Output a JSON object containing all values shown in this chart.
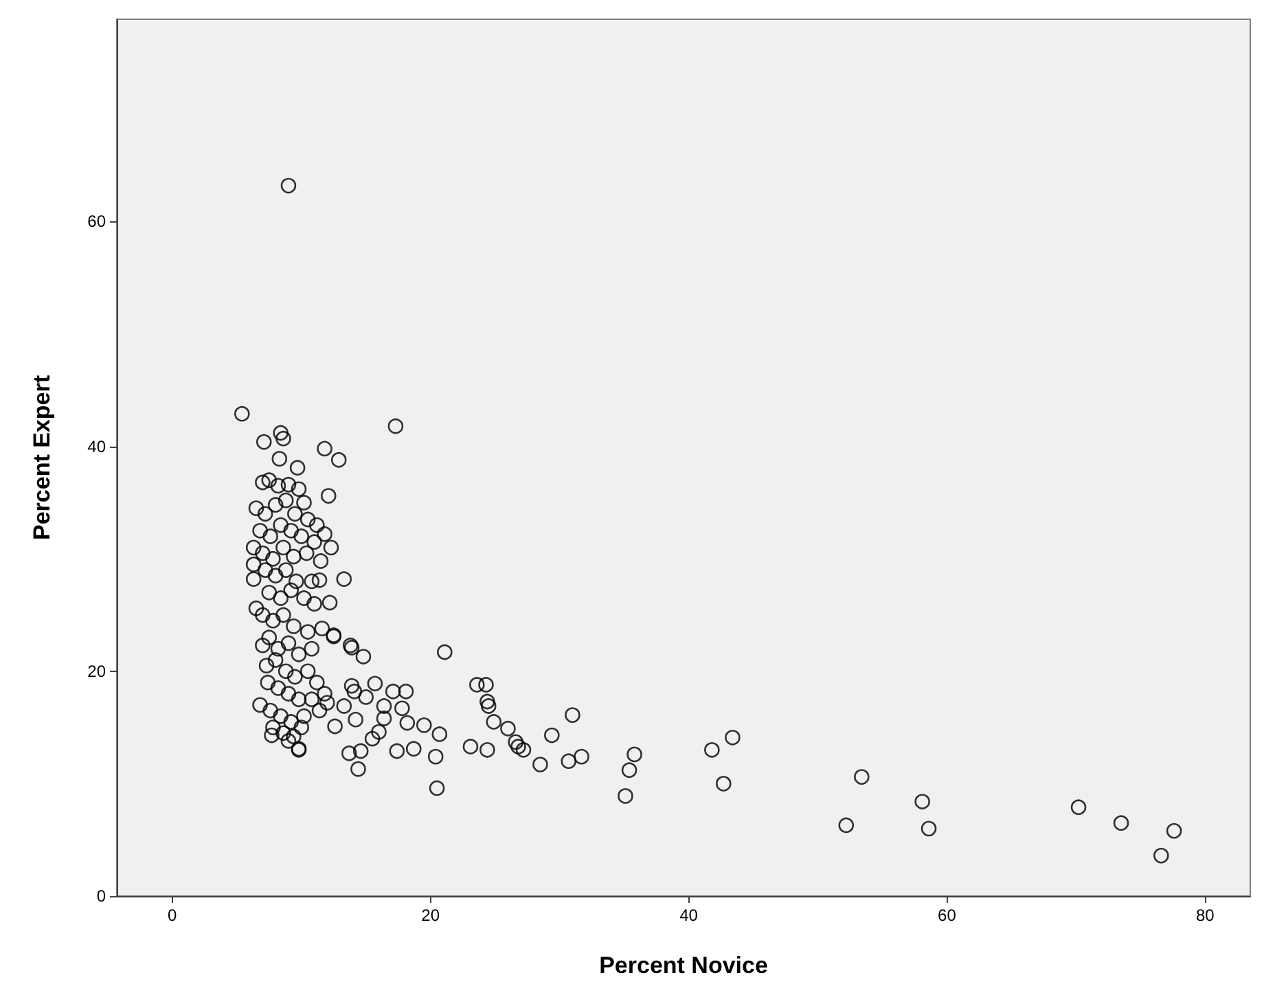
{
  "chart_data": {
    "type": "scatter",
    "xlabel": "Percent Novice",
    "ylabel": "Percent Expert",
    "xlim": [
      -4.3,
      83.5
    ],
    "ylim": [
      0,
      78
    ],
    "xticks": [
      0,
      20,
      40,
      60,
      80
    ],
    "yticks": [
      0,
      20,
      40,
      60
    ],
    "grid": false,
    "marker": "circle",
    "series": [
      {
        "color": "#000000",
        "x": [
          9.0,
          5.4,
          17.3,
          7.1,
          8.4,
          8.6,
          11.8,
          12.9,
          12.3,
          13.3,
          21.1,
          23.6,
          24.3,
          24.4,
          24.5,
          24.9,
          26.0,
          26.6,
          26.8,
          27.2,
          23.1,
          24.4,
          28.5,
          29.4,
          31.0,
          30.7,
          31.7,
          35.8,
          35.4,
          35.1,
          20.4,
          20.5,
          20.7,
          19.5,
          18.1,
          17.1,
          17.8,
          18.2,
          18.7,
          17.4,
          15.7,
          15.0,
          13.9,
          14.1,
          13.3,
          14.4,
          13.7,
          14.6,
          14.2,
          15.5,
          16.0,
          16.4,
          16.4,
          12.6,
          9.8,
          13.9,
          14.8,
          12.5,
          41.8,
          43.4,
          42.7,
          52.2,
          53.4,
          58.1,
          58.6,
          70.2,
          73.5,
          77.6,
          76.6,
          8.3,
          9.7,
          12.1,
          11.4,
          12.2,
          6.3,
          6.3,
          6.5,
          7.0,
          6.8,
          9.8,
          12.5,
          13.8,
          7.0,
          7.5,
          8.2,
          9.0,
          9.8,
          10.2,
          6.5,
          7.2,
          8.0,
          8.8,
          9.5,
          10.5,
          11.2,
          6.8,
          7.6,
          8.4,
          9.2,
          10.0,
          11.0,
          11.8,
          6.3,
          7.0,
          7.8,
          8.6,
          9.4,
          10.4,
          11.5,
          7.2,
          8.0,
          8.8,
          9.6,
          10.8,
          7.5,
          8.4,
          9.2,
          10.2,
          11.0,
          7.0,
          7.8,
          8.6,
          9.4,
          10.5,
          11.6,
          7.5,
          8.2,
          9.0,
          9.8,
          10.8,
          7.3,
          8.0,
          8.8,
          9.5,
          10.5,
          11.2,
          7.4,
          8.2,
          9.0,
          9.8,
          10.8,
          11.8,
          7.6,
          8.4,
          9.2,
          10.2,
          11.4,
          7.8,
          8.6,
          9.4,
          10.0,
          12.0,
          7.7,
          9.0
        ],
        "values": [
          63.2,
          42.9,
          41.8,
          40.4,
          41.2,
          40.7,
          39.8,
          38.8,
          31.0,
          28.2,
          21.7,
          18.8,
          18.8,
          17.3,
          16.9,
          15.5,
          14.9,
          13.7,
          13.3,
          13.0,
          13.3,
          13.0,
          11.7,
          14.3,
          16.1,
          12.0,
          12.4,
          12.6,
          11.2,
          8.9,
          12.4,
          9.6,
          14.4,
          15.2,
          18.2,
          18.2,
          16.7,
          15.4,
          13.1,
          12.9,
          18.9,
          17.7,
          18.7,
          18.2,
          16.9,
          11.3,
          12.7,
          12.9,
          15.7,
          14.0,
          14.6,
          16.9,
          15.8,
          15.1,
          13.0,
          22.1,
          21.3,
          23.1,
          13.0,
          14.1,
          10.0,
          6.3,
          10.6,
          8.4,
          6.0,
          7.9,
          6.5,
          5.8,
          3.6,
          38.9,
          38.1,
          35.6,
          28.1,
          26.1,
          29.5,
          28.2,
          25.6,
          22.3,
          17.0,
          13.1,
          23.2,
          22.3,
          36.8,
          37.0,
          36.5,
          36.6,
          36.2,
          35.0,
          34.5,
          34.0,
          34.8,
          35.2,
          34.0,
          33.5,
          33.0,
          32.5,
          32.0,
          33.0,
          32.5,
          32.0,
          31.5,
          32.2,
          31.0,
          30.5,
          30.0,
          31.0,
          30.2,
          30.5,
          29.8,
          29.0,
          28.5,
          29.0,
          28.0,
          28.0,
          27.0,
          26.5,
          27.2,
          26.5,
          26.0,
          25.0,
          24.5,
          25.0,
          24.0,
          23.5,
          23.8,
          23.0,
          22.0,
          22.5,
          21.5,
          22.0,
          20.5,
          21.0,
          20.0,
          19.5,
          20.0,
          19.0,
          19.0,
          18.5,
          18.0,
          17.5,
          17.5,
          18.0,
          16.5,
          16.0,
          15.5,
          16.0,
          16.5,
          15.0,
          14.5,
          14.2,
          15.0,
          17.2,
          14.3,
          13.8
        ]
      }
    ]
  }
}
